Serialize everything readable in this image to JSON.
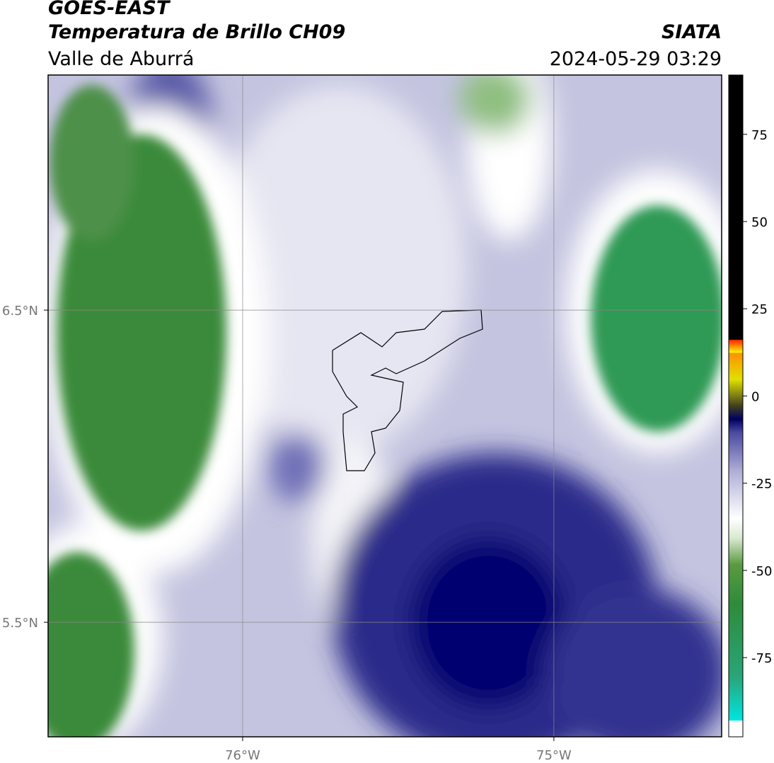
{
  "header": {
    "title": "GOES-EAST",
    "subtitle": "Temperatura de Brillo CH09",
    "region": "Valle de Aburrá",
    "source": "SIATA",
    "datetime": "2024-05-29 03:29"
  },
  "map": {
    "lonlim": [
      -76.625,
      -74.461
    ],
    "latlim": [
      5.133,
      7.253
    ],
    "xticks": [
      {
        "value": -76,
        "label": "76°W"
      },
      {
        "value": -75,
        "label": "75°W"
      }
    ],
    "yticks": [
      {
        "value": 6.5,
        "label": "6.5°N"
      },
      {
        "value": 5.5,
        "label": "5.5°N"
      }
    ]
  },
  "colorbar": {
    "lim": [
      -97.7,
      92
    ],
    "ticks": [
      75,
      50,
      25,
      0,
      -25,
      -50,
      -75
    ]
  }
}
